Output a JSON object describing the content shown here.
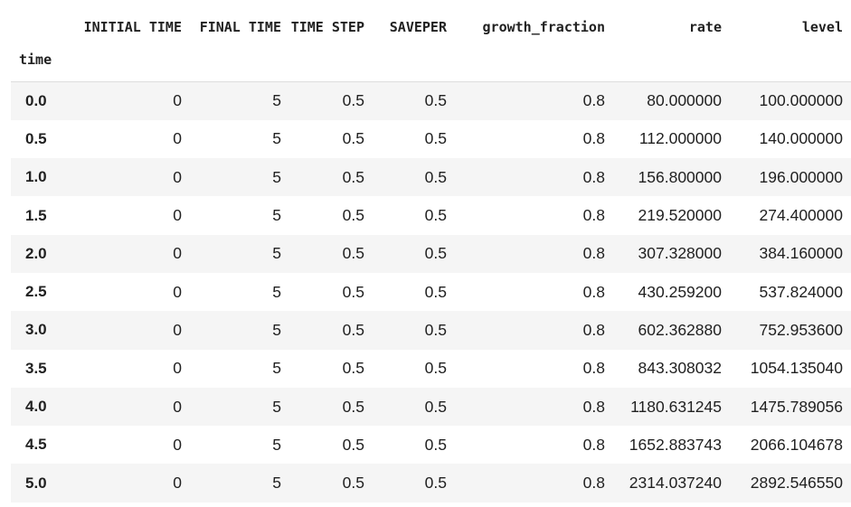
{
  "table": {
    "index_name": "time",
    "columns": [
      "INITIAL TIME",
      "FINAL TIME",
      "TIME STEP",
      "SAVEPER",
      "growth_fraction",
      "rate",
      "level"
    ],
    "rows": [
      {
        "index": "0.0",
        "cells": [
          "0",
          "5",
          "0.5",
          "0.5",
          "0.8",
          "80.000000",
          "100.000000"
        ]
      },
      {
        "index": "0.5",
        "cells": [
          "0",
          "5",
          "0.5",
          "0.5",
          "0.8",
          "112.000000",
          "140.000000"
        ]
      },
      {
        "index": "1.0",
        "cells": [
          "0",
          "5",
          "0.5",
          "0.5",
          "0.8",
          "156.800000",
          "196.000000"
        ]
      },
      {
        "index": "1.5",
        "cells": [
          "0",
          "5",
          "0.5",
          "0.5",
          "0.8",
          "219.520000",
          "274.400000"
        ]
      },
      {
        "index": "2.0",
        "cells": [
          "0",
          "5",
          "0.5",
          "0.5",
          "0.8",
          "307.328000",
          "384.160000"
        ]
      },
      {
        "index": "2.5",
        "cells": [
          "0",
          "5",
          "0.5",
          "0.5",
          "0.8",
          "430.259200",
          "537.824000"
        ]
      },
      {
        "index": "3.0",
        "cells": [
          "0",
          "5",
          "0.5",
          "0.5",
          "0.8",
          "602.362880",
          "752.953600"
        ]
      },
      {
        "index": "3.5",
        "cells": [
          "0",
          "5",
          "0.5",
          "0.5",
          "0.8",
          "843.308032",
          "1054.135040"
        ]
      },
      {
        "index": "4.0",
        "cells": [
          "0",
          "5",
          "0.5",
          "0.5",
          "0.8",
          "1180.631245",
          "1475.789056"
        ]
      },
      {
        "index": "4.5",
        "cells": [
          "0",
          "5",
          "0.5",
          "0.5",
          "0.8",
          "1652.883743",
          "2066.104678"
        ]
      },
      {
        "index": "5.0",
        "cells": [
          "0",
          "5",
          "0.5",
          "0.5",
          "0.8",
          "2314.037240",
          "2892.546550"
        ]
      }
    ]
  }
}
